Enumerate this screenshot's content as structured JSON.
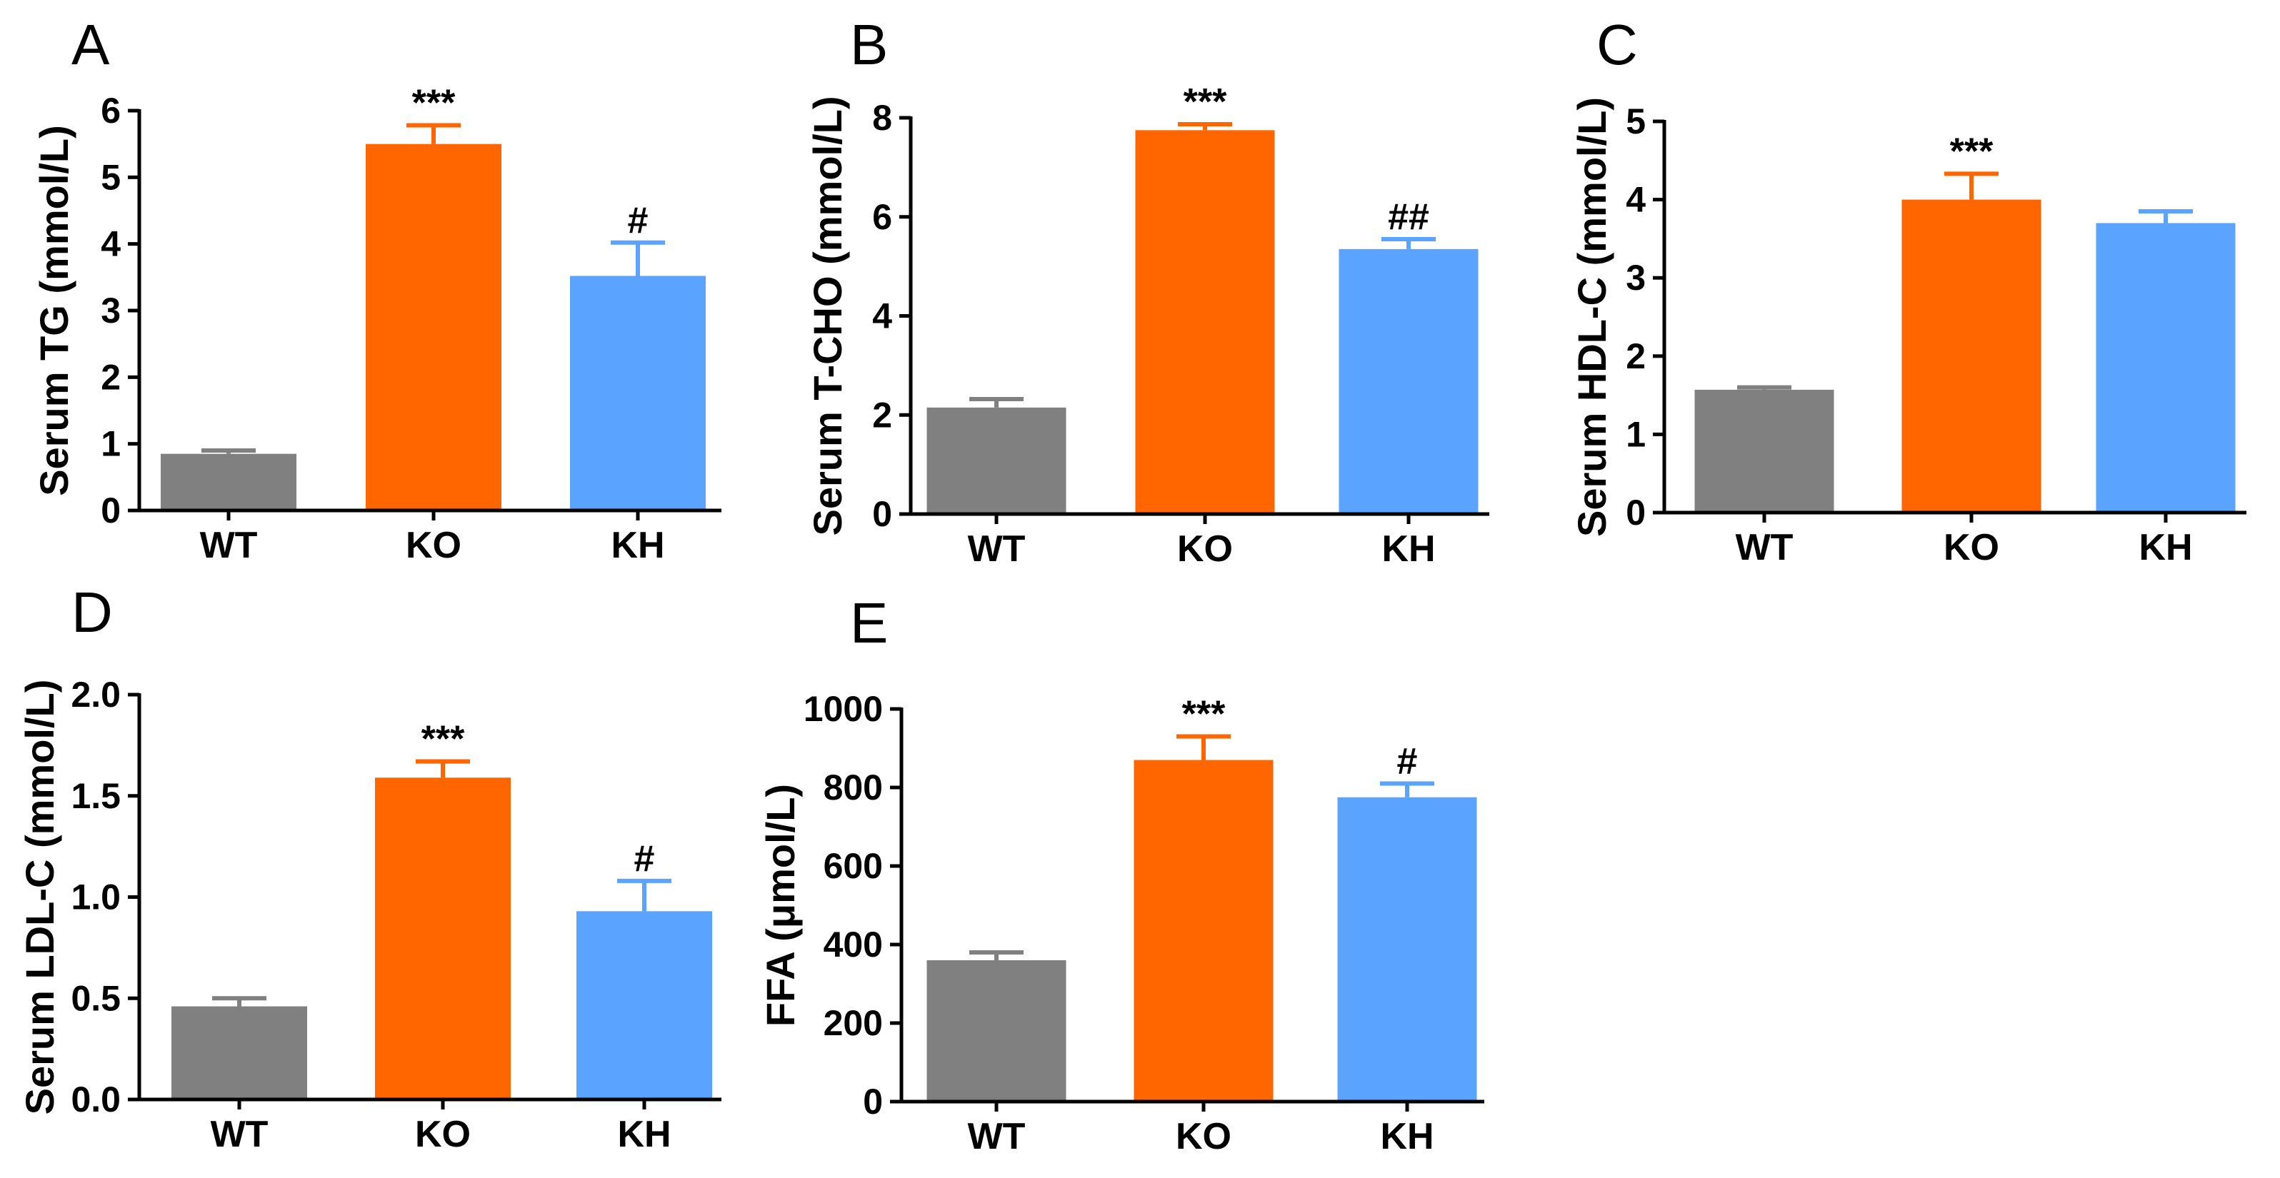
{
  "figure_colors": {
    "WT": "#808080",
    "KO": "#ff6600",
    "KH": "#5aa3ff"
  },
  "chart_data": [
    {
      "panel": "A",
      "type": "bar",
      "ylabel": "Serum TG (mmol/L)",
      "categories": [
        "WT",
        "KO",
        "KH"
      ],
      "values": [
        0.85,
        5.5,
        3.52
      ],
      "errors": [
        0.05,
        0.28,
        0.5
      ],
      "annotations": [
        "",
        "***",
        "#"
      ],
      "ylim": [
        0,
        6
      ],
      "yticks": [
        0,
        1,
        2,
        3,
        4,
        5,
        6
      ],
      "ytick_labels": [
        "0",
        "1",
        "2",
        "3",
        "4",
        "5",
        "6"
      ]
    },
    {
      "panel": "B",
      "type": "bar",
      "ylabel": "Serum T-CHO (mmol/L)",
      "categories": [
        "WT",
        "KO",
        "KH"
      ],
      "values": [
        2.15,
        7.75,
        5.35
      ],
      "errors": [
        0.17,
        0.12,
        0.2
      ],
      "annotations": [
        "",
        "***",
        "##"
      ],
      "ylim": [
        0,
        8
      ],
      "yticks": [
        0,
        2,
        4,
        6,
        8
      ],
      "ytick_labels": [
        "0",
        "2",
        "4",
        "6",
        "8"
      ]
    },
    {
      "panel": "C",
      "type": "bar",
      "ylabel": "Serum HDL-C (mmol/L)",
      "categories": [
        "WT",
        "KO",
        "KH"
      ],
      "values": [
        1.57,
        4.0,
        3.7
      ],
      "errors": [
        0.03,
        0.33,
        0.15
      ],
      "annotations": [
        "",
        "***",
        ""
      ],
      "ylim": [
        0,
        5
      ],
      "yticks": [
        0,
        1,
        2,
        3,
        4,
        5
      ],
      "ytick_labels": [
        "0",
        "1",
        "2",
        "3",
        "4",
        "5"
      ]
    },
    {
      "panel": "D",
      "type": "bar",
      "ylabel": "Serum LDL-C (mmol/L)",
      "categories": [
        "WT",
        "KO",
        "KH"
      ],
      "values": [
        0.46,
        1.59,
        0.93
      ],
      "errors": [
        0.04,
        0.08,
        0.15
      ],
      "annotations": [
        "",
        "***",
        "#"
      ],
      "ylim": [
        0,
        2.0
      ],
      "yticks": [
        0,
        0.5,
        1.0,
        1.5,
        2.0
      ],
      "ytick_labels": [
        "0.0",
        "0.5",
        "1.0",
        "1.5",
        "2.0"
      ]
    },
    {
      "panel": "E",
      "type": "bar",
      "ylabel": "FFA (μmol/L)",
      "categories": [
        "WT",
        "KO",
        "KH"
      ],
      "values": [
        360,
        870,
        775
      ],
      "errors": [
        20,
        60,
        35
      ],
      "annotations": [
        "",
        "***",
        "#"
      ],
      "ylim": [
        0,
        1000
      ],
      "yticks": [
        0,
        200,
        400,
        600,
        800,
        1000
      ],
      "ytick_labels": [
        "0",
        "200",
        "400",
        "600",
        "800",
        "1000"
      ]
    }
  ]
}
